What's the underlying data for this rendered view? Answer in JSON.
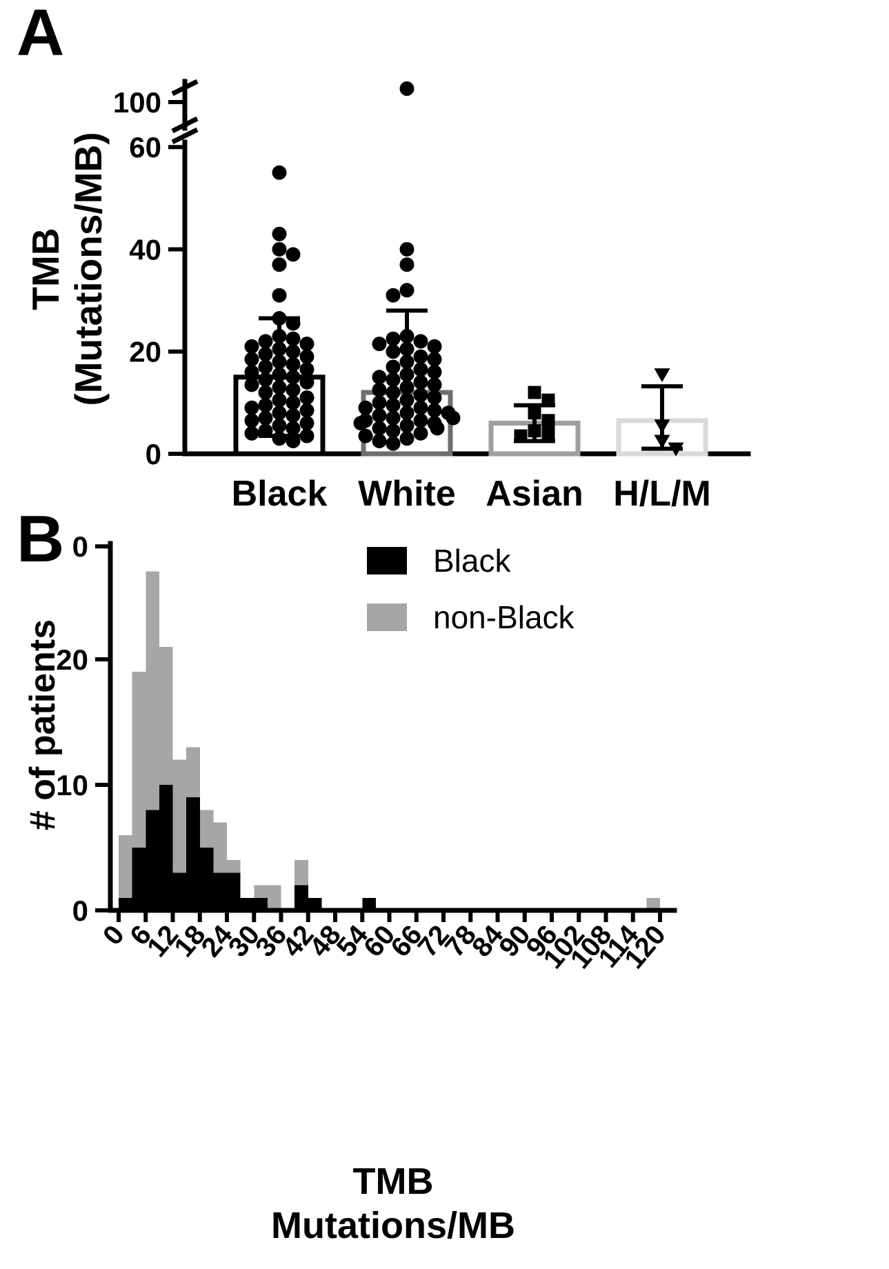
{
  "chart_data": [
    {
      "type": "scatter",
      "panel_label": "A",
      "ylabel_line1": "TMB",
      "ylabel_line2": "(Mutations/MB)",
      "categories": [
        "Black",
        "White",
        "Asian",
        "H/L/M"
      ],
      "marker_shapes": [
        "circle",
        "circle",
        "square",
        "triangle-down"
      ],
      "bar_outline_colors": [
        "#000000",
        "#6e6e6e",
        "#9e9e9e",
        "#d9d9d9"
      ],
      "bar_means": [
        15,
        12,
        6,
        6.5
      ],
      "error_top": [
        26.5,
        28,
        9.5,
        13.2
      ],
      "error_bottom": [
        3.5,
        null,
        2.5,
        1
      ],
      "y_axis": {
        "lower_ticks": [
          0,
          20,
          40,
          60
        ],
        "upper_tick": 100,
        "axis_break": true
      },
      "points": {
        "Black": [
          55,
          43,
          40,
          39,
          37,
          31,
          26.5,
          25.5,
          23,
          22.5,
          22,
          21.5,
          21,
          20.5,
          20,
          19.5,
          19,
          18.5,
          18,
          17.5,
          17,
          16.5,
          16,
          15.5,
          15,
          14.5,
          14,
          13.5,
          13,
          12.5,
          12,
          11,
          10.5,
          10,
          9.5,
          9,
          8.5,
          8,
          7.5,
          7,
          6.5,
          6,
          5.5,
          5,
          4.5,
          4,
          3.5,
          3,
          2.5
        ],
        "White": [
          103,
          40,
          37,
          32,
          31,
          23,
          22.5,
          22,
          21.5,
          21,
          20.5,
          20,
          19,
          18.5,
          18,
          17,
          16.5,
          16,
          15.5,
          15,
          14.5,
          14,
          13.5,
          13,
          12.5,
          12,
          11.5,
          11,
          10.5,
          10,
          9.5,
          9,
          9,
          8.5,
          8,
          8,
          7.5,
          7,
          7,
          6.5,
          6.5,
          6,
          6,
          5.5,
          5,
          5,
          4.5,
          4,
          3.5,
          3,
          2.5,
          2
        ],
        "Asian": [
          12,
          10.5,
          8,
          6.5,
          4.5,
          4,
          3.5
        ],
        "H/L/M": [
          15.5,
          5.5,
          2.5,
          1
        ]
      }
    },
    {
      "type": "bar",
      "style": "overlaid-histogram",
      "panel_label": "B",
      "ylabel": "# of patients",
      "xlabel_line1": "TMB",
      "xlabel_line2": "Mutations/MB",
      "bin_width": 3,
      "bin_starts": [
        0,
        3,
        6,
        9,
        12,
        15,
        18,
        21,
        24,
        27,
        30,
        33,
        36,
        39,
        42,
        45,
        48,
        51,
        54,
        57,
        60,
        63,
        66,
        69,
        72,
        75,
        78,
        81,
        84,
        87,
        90,
        93,
        96,
        99,
        102,
        105,
        108,
        111,
        114,
        117
      ],
      "series": [
        {
          "name": "Black",
          "color": "#000000",
          "values": [
            1,
            5,
            8,
            10,
            3,
            9,
            5,
            3,
            3,
            1,
            1,
            0,
            0,
            2,
            1,
            0,
            0,
            0,
            1,
            0,
            0,
            0,
            0,
            0,
            0,
            0,
            0,
            0,
            0,
            0,
            0,
            0,
            0,
            0,
            0,
            0,
            0,
            0,
            0,
            0
          ]
        },
        {
          "name": "non-Black",
          "color": "#a6a6a6",
          "values": [
            6,
            19,
            27,
            21,
            12,
            13,
            8,
            7,
            4,
            1,
            2,
            2,
            0,
            4,
            1,
            0,
            0,
            0,
            1,
            0,
            0,
            0,
            0,
            0,
            0,
            0,
            0,
            0,
            0,
            0,
            0,
            0,
            0,
            0,
            0,
            0,
            0,
            0,
            0,
            1
          ]
        }
      ],
      "x_tick_labels": [
        "0",
        "6",
        "12",
        "18",
        "24",
        "30",
        "36",
        "42",
        "48",
        "54",
        "60",
        "66",
        "72",
        "78",
        "84",
        "90",
        "96",
        "102",
        "108",
        "114",
        "120"
      ],
      "y_ticks": [
        {
          "value": 0,
          "label": "0"
        },
        {
          "value": 10,
          "label": "10"
        },
        {
          "value": 20,
          "label": "20"
        },
        {
          "value": 29,
          "label": "0"
        }
      ],
      "ylim": [
        0,
        29
      ]
    }
  ]
}
